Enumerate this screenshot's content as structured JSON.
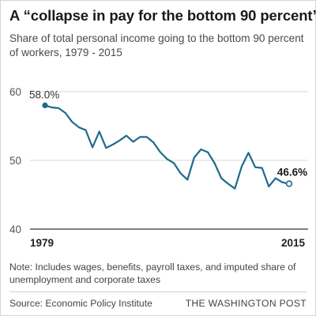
{
  "header": {
    "title": "A “collapse in pay for the bottom 90 percent”",
    "subtitle": "Share of total personal income going to the bottom 90 percent of workers, 1979 - 2015"
  },
  "footer": {
    "note": "Note: Includes wages, benefits, payroll taxes, and imputed share of unemployment and corporate taxes",
    "source": "Source: Economic Policy Institute",
    "brand": "THE WASHINGTON POST"
  },
  "colors": {
    "line": "#1f6a8a",
    "grid": "#d9d9d9",
    "baseline": "#333333"
  },
  "chart_data": {
    "type": "line",
    "title": "A “collapse in pay for the bottom 90 percent”",
    "subtitle": "Share of total personal income going to the bottom 90 percent of workers, 1979 - 2015",
    "xlabel": "",
    "ylabel": "",
    "xlim": [
      1979,
      2015
    ],
    "ylim": [
      40,
      60
    ],
    "yticks": [
      40,
      50,
      60
    ],
    "xtick_labels": [
      "1979",
      "2015"
    ],
    "grid": true,
    "legend": "none",
    "x": [
      1979,
      1980,
      1981,
      1982,
      1983,
      1984,
      1985,
      1986,
      1987,
      1988,
      1989,
      1990,
      1991,
      1992,
      1993,
      1994,
      1995,
      1996,
      1997,
      1998,
      1999,
      2000,
      2001,
      2002,
      2003,
      2004,
      2005,
      2006,
      2007,
      2008,
      2009,
      2010,
      2011,
      2012,
      2013,
      2014,
      2015
    ],
    "series": [
      {
        "values": [
          58.0,
          57.7,
          57.6,
          56.9,
          55.6,
          54.8,
          54.4,
          51.9,
          54.2,
          51.8,
          52.3,
          52.9,
          53.6,
          52.7,
          53.4,
          53.4,
          52.6,
          51.2,
          50.2,
          49.6,
          48.1,
          47.2,
          50.4,
          51.6,
          51.2,
          49.6,
          47.4,
          46.6,
          45.9,
          49.1,
          51.1,
          49.0,
          48.9,
          46.2,
          47.4,
          46.8,
          46.6
        ],
        "start_label": "58.0%",
        "end_label": "46.6%"
      }
    ]
  }
}
